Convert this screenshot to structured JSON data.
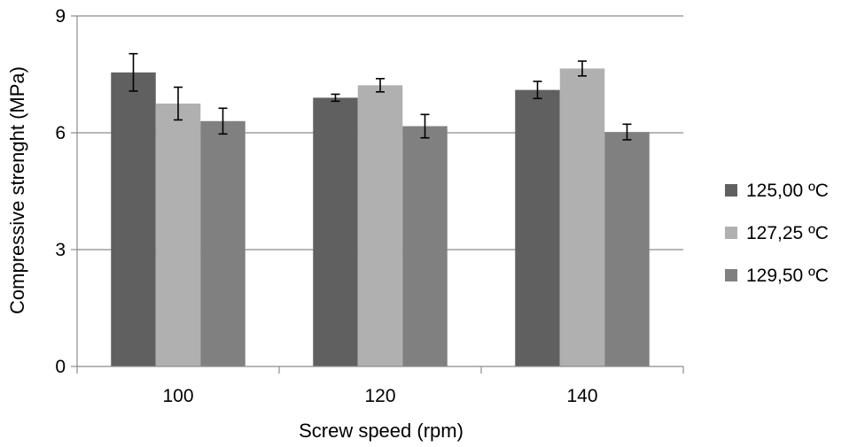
{
  "chart_data": {
    "type": "bar",
    "title": "",
    "xlabel": "Screw speed (rpm)",
    "ylabel": "Compressive strenght (MPa)",
    "ylim": [
      0,
      9
    ],
    "yticks": [
      "0",
      "3",
      "6",
      "9"
    ],
    "ytick_values": [
      0,
      3,
      6,
      9
    ],
    "grid": true,
    "legend_position": "right",
    "categories": [
      "100",
      "120",
      "140"
    ],
    "series": [
      {
        "name": "125,00 ºC",
        "color": "#606060",
        "values": [
          7.55,
          6.9,
          7.1
        ],
        "errors": [
          0.48,
          0.09,
          0.22
        ]
      },
      {
        "name": "127,25 ºC",
        "color": "#b0b0b0",
        "values": [
          6.75,
          7.22,
          7.65
        ],
        "errors": [
          0.42,
          0.17,
          0.19
        ]
      },
      {
        "name": "129,50 ºC",
        "color": "#808080",
        "values": [
          6.3,
          6.17,
          6.02
        ],
        "errors": [
          0.33,
          0.3,
          0.2
        ]
      }
    ]
  }
}
